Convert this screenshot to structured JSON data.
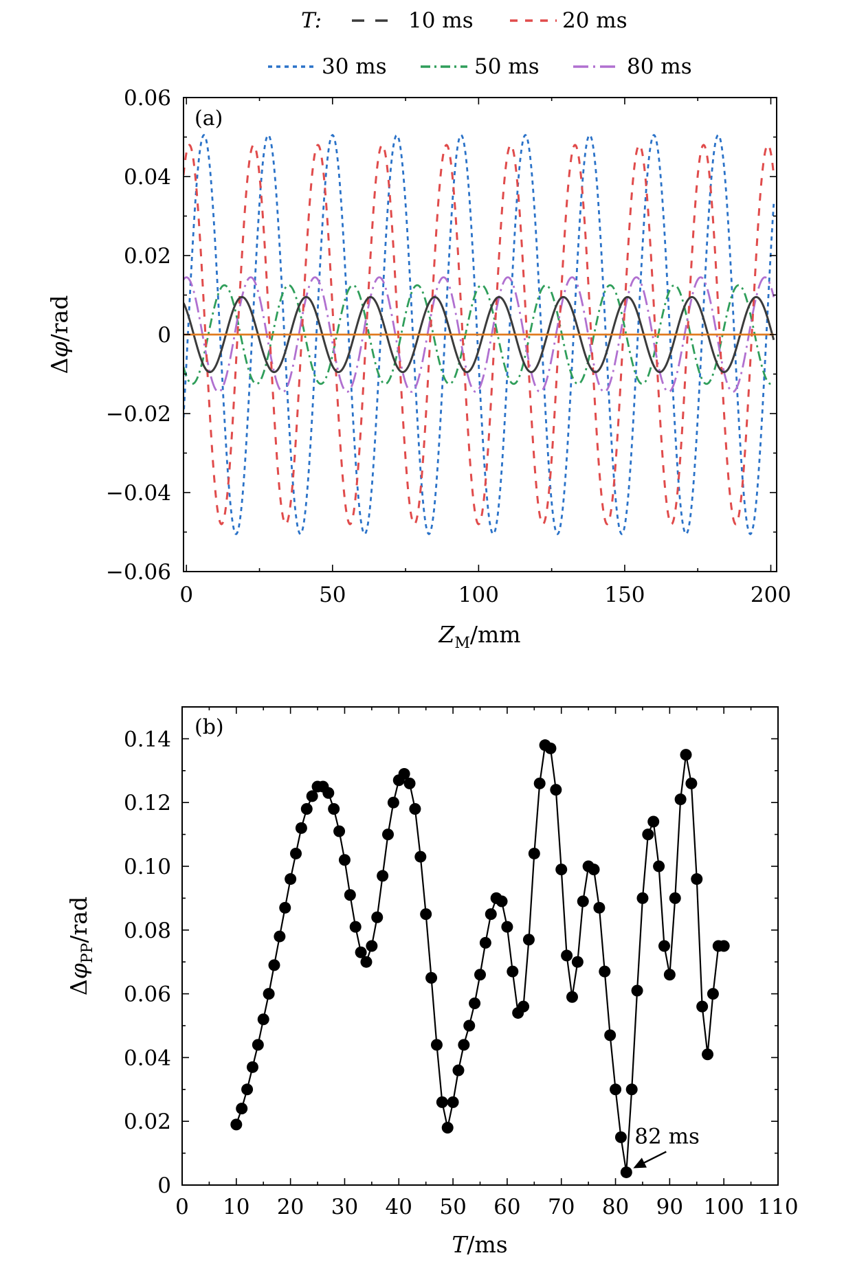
{
  "figure": {
    "legend_title": "T:",
    "legend_entries": [
      {
        "label": "10 ms",
        "color": "#3b3b3b",
        "dash": "long-dash"
      },
      {
        "label": "20 ms",
        "color": "#e04b4b",
        "dash": "dash"
      },
      {
        "label": "30 ms",
        "color": "#2a72c8",
        "dash": "short-dash"
      },
      {
        "label": "50 ms",
        "color": "#2f9e5a",
        "dash": "dash-dot"
      },
      {
        "label": "80 ms",
        "color": "#b070d0",
        "dash": "dash-dot"
      }
    ]
  },
  "chart_data": [
    {
      "type": "line",
      "panel_label": "(a)",
      "xlabel": "Z_M/mm",
      "ylabel": "Δφ/rad",
      "xlim": [
        0,
        200
      ],
      "ylim": [
        -0.06,
        0.06
      ],
      "xticks": [
        0,
        50,
        100,
        150,
        200
      ],
      "yticks": [
        -0.06,
        -0.04,
        -0.02,
        0,
        0.02,
        0.04,
        0.06
      ],
      "ytick_labels": [
        "−0.06",
        "−0.04",
        "−0.02",
        "0",
        "0.02",
        "0.04",
        "0.06"
      ],
      "series": [
        {
          "name": "10 ms",
          "color": "#3b3b3b",
          "amplitude": 0.0095,
          "period_mm": 22,
          "peak_at_mm": 19
        },
        {
          "name": "20 ms",
          "color": "#e04b4b",
          "amplitude": 0.048,
          "period_mm": 22,
          "peak_at_mm": 1
        },
        {
          "name": "30 ms",
          "color": "#2a72c8",
          "amplitude": 0.0505,
          "period_mm": 22,
          "peak_at_mm": 6
        },
        {
          "name": "50 ms",
          "color": "#2f9e5a",
          "amplitude": 0.0125,
          "period_mm": 22,
          "peak_at_mm": 13
        },
        {
          "name": "80 ms",
          "color": "#b070d0",
          "amplitude": 0.0145,
          "period_mm": 22,
          "peak_at_mm": 0
        },
        {
          "color": "#e07a1f",
          "amplitude": 0,
          "period_mm": 22,
          "peak_at_mm": 0
        }
      ]
    },
    {
      "type": "line",
      "panel_label": "(b)",
      "xlabel": "T/ms",
      "ylabel": "Δφ_PP/rad",
      "xlim": [
        0,
        110
      ],
      "ylim": [
        0,
        0.15
      ],
      "xticks": [
        0,
        10,
        20,
        30,
        40,
        50,
        60,
        70,
        80,
        90,
        100,
        110
      ],
      "yticks": [
        0,
        0.02,
        0.04,
        0.06,
        0.08,
        0.1,
        0.12,
        0.14
      ],
      "ytick_labels": [
        "0",
        "0.02",
        "0.04",
        "0.06",
        "0.08",
        "0.10",
        "0.12",
        "0.14"
      ],
      "annotation": {
        "text": "82 ms",
        "x": 82,
        "y": 0.004
      },
      "x": [
        10,
        11,
        12,
        13,
        14,
        15,
        16,
        17,
        18,
        19,
        20,
        21,
        22,
        23,
        24,
        25,
        26,
        27,
        28,
        29,
        30,
        31,
        32,
        33,
        34,
        35,
        36,
        37,
        38,
        39,
        40,
        41,
        42,
        43,
        44,
        45,
        46,
        47,
        48,
        49,
        50,
        51,
        52,
        53,
        54,
        55,
        56,
        57,
        58,
        59,
        60,
        61,
        62,
        63,
        64,
        65,
        66,
        67,
        68,
        69,
        70,
        71,
        72,
        73,
        74,
        75,
        76,
        77,
        78,
        79,
        80,
        81,
        82,
        83,
        84,
        85,
        86,
        87,
        88,
        89,
        90,
        91,
        92,
        93,
        94,
        95,
        96,
        97,
        98,
        99,
        100
      ],
      "y": [
        0.019,
        0.024,
        0.03,
        0.037,
        0.044,
        0.052,
        0.06,
        0.069,
        0.078,
        0.087,
        0.096,
        0.104,
        0.112,
        0.118,
        0.122,
        0.125,
        0.125,
        0.123,
        0.118,
        0.111,
        0.102,
        0.091,
        0.081,
        0.073,
        0.07,
        0.075,
        0.084,
        0.097,
        0.11,
        0.12,
        0.127,
        0.129,
        0.126,
        0.118,
        0.103,
        0.085,
        0.065,
        0.044,
        0.026,
        0.018,
        0.026,
        0.036,
        0.044,
        0.05,
        0.057,
        0.066,
        0.076,
        0.085,
        0.09,
        0.089,
        0.081,
        0.067,
        0.054,
        0.056,
        0.077,
        0.104,
        0.126,
        0.138,
        0.137,
        0.124,
        0.099,
        0.072,
        0.059,
        0.07,
        0.089,
        0.1,
        0.099,
        0.087,
        0.067,
        0.047,
        0.03,
        0.015,
        0.004,
        0.03,
        0.061,
        0.09,
        0.11,
        0.114,
        0.1,
        0.075,
        0.066,
        0.09,
        0.121,
        0.135,
        0.126,
        0.096,
        0.056,
        0.041,
        0.06,
        0.075,
        0.075
      ]
    }
  ]
}
